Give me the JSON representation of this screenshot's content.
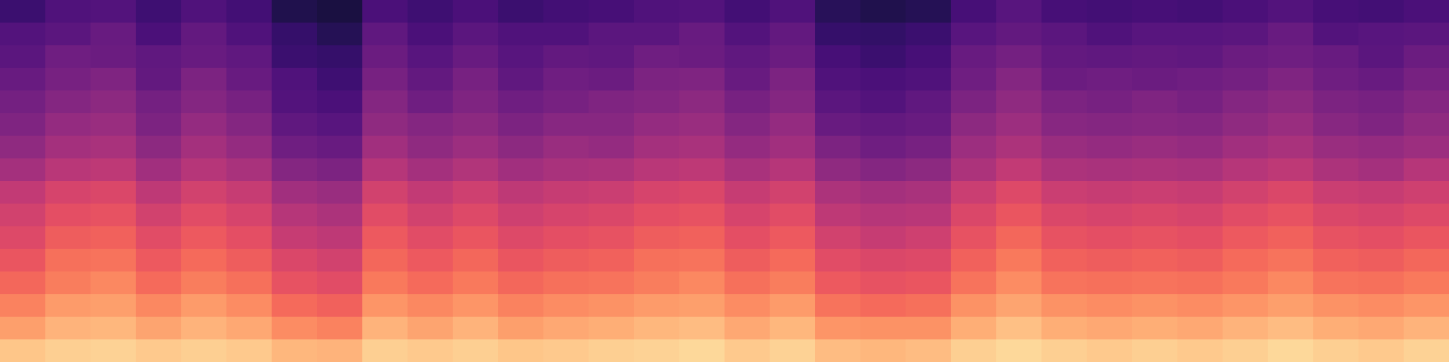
{
  "chart_data": {
    "type": "heatmap",
    "color": "magma",
    "tick_labels": false,
    "clim": [
      0,
      1
    ],
    "cells": [
      [
        0.2,
        0.25,
        0.26,
        0.21,
        0.25,
        0.22,
        0.14,
        0.12,
        0.24,
        0.21,
        0.24,
        0.2,
        0.22,
        0.23,
        0.25,
        0.26,
        0.22,
        0.25,
        0.16,
        0.14,
        0.15,
        0.23,
        0.27,
        0.23,
        0.22,
        0.23,
        0.22,
        0.24,
        0.26,
        0.23,
        0.22,
        0.24
      ],
      [
        0.26,
        0.28,
        0.31,
        0.24,
        0.3,
        0.25,
        0.19,
        0.15,
        0.29,
        0.24,
        0.28,
        0.25,
        0.25,
        0.28,
        0.28,
        0.31,
        0.26,
        0.3,
        0.19,
        0.18,
        0.2,
        0.27,
        0.3,
        0.28,
        0.25,
        0.27,
        0.27,
        0.28,
        0.31,
        0.26,
        0.27,
        0.28
      ],
      [
        0.28,
        0.33,
        0.32,
        0.29,
        0.31,
        0.29,
        0.2,
        0.19,
        0.32,
        0.27,
        0.31,
        0.27,
        0.3,
        0.29,
        0.33,
        0.32,
        0.29,
        0.32,
        0.23,
        0.2,
        0.23,
        0.31,
        0.34,
        0.3,
        0.29,
        0.3,
        0.29,
        0.32,
        0.33,
        0.31,
        0.28,
        0.32
      ],
      [
        0.31,
        0.35,
        0.37,
        0.3,
        0.36,
        0.31,
        0.25,
        0.21,
        0.35,
        0.3,
        0.35,
        0.29,
        0.33,
        0.32,
        0.36,
        0.37,
        0.31,
        0.36,
        0.25,
        0.24,
        0.25,
        0.33,
        0.38,
        0.32,
        0.33,
        0.32,
        0.33,
        0.34,
        0.37,
        0.33,
        0.31,
        0.35
      ],
      [
        0.34,
        0.38,
        0.4,
        0.34,
        0.38,
        0.35,
        0.26,
        0.24,
        0.38,
        0.33,
        0.37,
        0.33,
        0.35,
        0.37,
        0.38,
        0.4,
        0.35,
        0.38,
        0.28,
        0.26,
        0.29,
        0.36,
        0.41,
        0.36,
        0.35,
        0.37,
        0.35,
        0.38,
        0.4,
        0.36,
        0.35,
        0.38
      ],
      [
        0.37,
        0.42,
        0.43,
        0.36,
        0.42,
        0.38,
        0.29,
        0.27,
        0.41,
        0.38,
        0.4,
        0.36,
        0.39,
        0.39,
        0.42,
        0.43,
        0.38,
        0.42,
        0.31,
        0.3,
        0.31,
        0.4,
        0.44,
        0.39,
        0.38,
        0.39,
        0.38,
        0.41,
        0.43,
        0.39,
        0.37,
        0.41
      ],
      [
        0.41,
        0.46,
        0.47,
        0.4,
        0.46,
        0.42,
        0.33,
        0.31,
        0.45,
        0.41,
        0.44,
        0.4,
        0.43,
        0.42,
        0.46,
        0.47,
        0.42,
        0.45,
        0.36,
        0.33,
        0.35,
        0.44,
        0.48,
        0.43,
        0.42,
        0.43,
        0.42,
        0.45,
        0.47,
        0.43,
        0.42,
        0.44
      ],
      [
        0.46,
        0.51,
        0.52,
        0.45,
        0.5,
        0.47,
        0.38,
        0.36,
        0.5,
        0.46,
        0.49,
        0.45,
        0.47,
        0.48,
        0.51,
        0.52,
        0.47,
        0.5,
        0.41,
        0.38,
        0.4,
        0.48,
        0.53,
        0.48,
        0.47,
        0.48,
        0.47,
        0.5,
        0.52,
        0.48,
        0.46,
        0.5
      ],
      [
        0.53,
        0.58,
        0.59,
        0.52,
        0.57,
        0.54,
        0.45,
        0.43,
        0.57,
        0.53,
        0.56,
        0.52,
        0.54,
        0.55,
        0.58,
        0.59,
        0.54,
        0.57,
        0.48,
        0.46,
        0.47,
        0.55,
        0.6,
        0.55,
        0.54,
        0.55,
        0.54,
        0.57,
        0.59,
        0.55,
        0.54,
        0.56
      ],
      [
        0.57,
        0.62,
        0.63,
        0.57,
        0.61,
        0.58,
        0.5,
        0.48,
        0.61,
        0.57,
        0.6,
        0.56,
        0.58,
        0.59,
        0.62,
        0.63,
        0.58,
        0.61,
        0.52,
        0.5,
        0.51,
        0.59,
        0.64,
        0.59,
        0.58,
        0.59,
        0.58,
        0.61,
        0.63,
        0.59,
        0.58,
        0.6
      ],
      [
        0.6,
        0.66,
        0.67,
        0.61,
        0.65,
        0.62,
        0.54,
        0.52,
        0.65,
        0.61,
        0.64,
        0.6,
        0.62,
        0.63,
        0.66,
        0.67,
        0.62,
        0.65,
        0.57,
        0.54,
        0.56,
        0.63,
        0.68,
        0.63,
        0.62,
        0.63,
        0.62,
        0.65,
        0.67,
        0.63,
        0.62,
        0.64
      ],
      [
        0.64,
        0.7,
        0.71,
        0.65,
        0.69,
        0.66,
        0.59,
        0.57,
        0.68,
        0.65,
        0.68,
        0.64,
        0.66,
        0.67,
        0.7,
        0.71,
        0.66,
        0.69,
        0.61,
        0.59,
        0.6,
        0.67,
        0.72,
        0.67,
        0.66,
        0.67,
        0.66,
        0.69,
        0.71,
        0.67,
        0.66,
        0.68
      ],
      [
        0.68,
        0.73,
        0.75,
        0.69,
        0.73,
        0.7,
        0.63,
        0.61,
        0.72,
        0.69,
        0.72,
        0.68,
        0.7,
        0.71,
        0.73,
        0.75,
        0.7,
        0.73,
        0.65,
        0.63,
        0.64,
        0.71,
        0.76,
        0.71,
        0.7,
        0.71,
        0.7,
        0.72,
        0.75,
        0.71,
        0.7,
        0.72
      ],
      [
        0.74,
        0.79,
        0.8,
        0.75,
        0.79,
        0.76,
        0.69,
        0.67,
        0.78,
        0.75,
        0.78,
        0.74,
        0.76,
        0.77,
        0.79,
        0.8,
        0.76,
        0.79,
        0.71,
        0.69,
        0.7,
        0.77,
        0.81,
        0.77,
        0.76,
        0.77,
        0.76,
        0.78,
        0.8,
        0.77,
        0.76,
        0.78
      ],
      [
        0.8,
        0.84,
        0.85,
        0.81,
        0.84,
        0.82,
        0.76,
        0.74,
        0.84,
        0.81,
        0.84,
        0.8,
        0.82,
        0.83,
        0.85,
        0.86,
        0.82,
        0.85,
        0.78,
        0.77,
        0.77,
        0.83,
        0.87,
        0.83,
        0.82,
        0.83,
        0.82,
        0.84,
        0.86,
        0.83,
        0.82,
        0.84
      ],
      [
        0.88,
        0.9,
        0.91,
        0.89,
        0.9,
        0.89,
        0.85,
        0.84,
        0.9,
        0.89,
        0.9,
        0.88,
        0.89,
        0.9,
        0.91,
        0.92,
        0.89,
        0.91,
        0.86,
        0.85,
        0.86,
        0.9,
        0.92,
        0.9,
        0.89,
        0.9,
        0.89,
        0.9,
        0.92,
        0.9,
        0.89,
        0.91
      ]
    ]
  }
}
